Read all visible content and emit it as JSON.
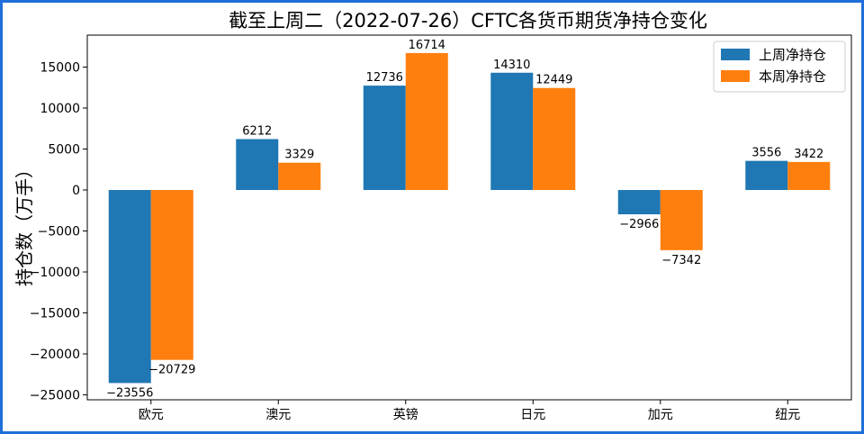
{
  "chart_data": {
    "type": "bar",
    "title": "截至上周二（2022-07-26）CFTC各货币期货净持仓变化",
    "xlabel": "",
    "ylabel": "持仓数（万手）",
    "categories": [
      "欧元",
      "澳元",
      "英镑",
      "日元",
      "加元",
      "纽元"
    ],
    "series": [
      {
        "name": "上周净持仓",
        "values": [
          -23556,
          6212,
          12736,
          14310,
          -2966,
          3556
        ],
        "color": "#1f77b4"
      },
      {
        "name": "本周净持仓",
        "values": [
          -20729,
          3329,
          16714,
          12449,
          -7342,
          3422
        ],
        "color": "#ff7f0e"
      }
    ],
    "ylim": [
      -25600,
      18900
    ],
    "yticks": [
      -25000,
      -20000,
      -15000,
      -10000,
      -5000,
      0,
      5000,
      10000,
      15000
    ],
    "legend_position": "top-right",
    "grid": false
  }
}
